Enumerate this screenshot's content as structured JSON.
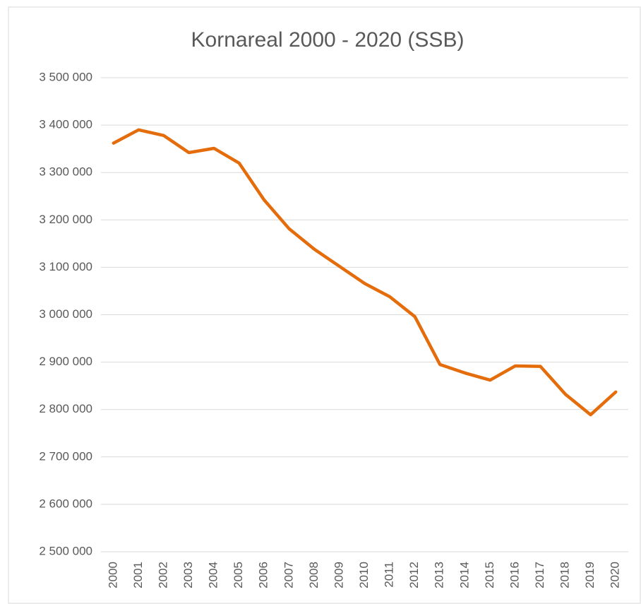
{
  "chart_data": {
    "type": "line",
    "title": "Kornareal 2000 - 2020 (SSB)",
    "categories": [
      "2000",
      "2001",
      "2002",
      "2003",
      "2004",
      "2005",
      "2006",
      "2007",
      "2008",
      "2009",
      "2010",
      "2011",
      "2012",
      "2013",
      "2014",
      "2015",
      "2016",
      "2017",
      "2018",
      "2019",
      "2020"
    ],
    "series": [
      {
        "name": "Kornareal",
        "color": "#e46c0a",
        "values": [
          3362000,
          3390000,
          3378000,
          3342000,
          3351000,
          3320000,
          3242000,
          3181000,
          3138000,
          3102000,
          3066000,
          3038000,
          2996000,
          2895000,
          2877000,
          2862000,
          2892000,
          2891000,
          2832000,
          2789000,
          2837000
        ]
      }
    ],
    "ylim": [
      2500000,
      3500000
    ],
    "yticks": [
      {
        "value": 2500000,
        "label": "2 500 000"
      },
      {
        "value": 2600000,
        "label": "2 600 000"
      },
      {
        "value": 2700000,
        "label": "2 700 000"
      },
      {
        "value": 2800000,
        "label": "2 800 000"
      },
      {
        "value": 2900000,
        "label": "2 900 000"
      },
      {
        "value": 3000000,
        "label": "3 000 000"
      },
      {
        "value": 3100000,
        "label": "3 100 000"
      },
      {
        "value": 3200000,
        "label": "3 200 000"
      },
      {
        "value": 3300000,
        "label": "3 300 000"
      },
      {
        "value": 3400000,
        "label": "3 400 000"
      },
      {
        "value": 3500000,
        "label": "3 500 000"
      }
    ],
    "grid": true
  }
}
